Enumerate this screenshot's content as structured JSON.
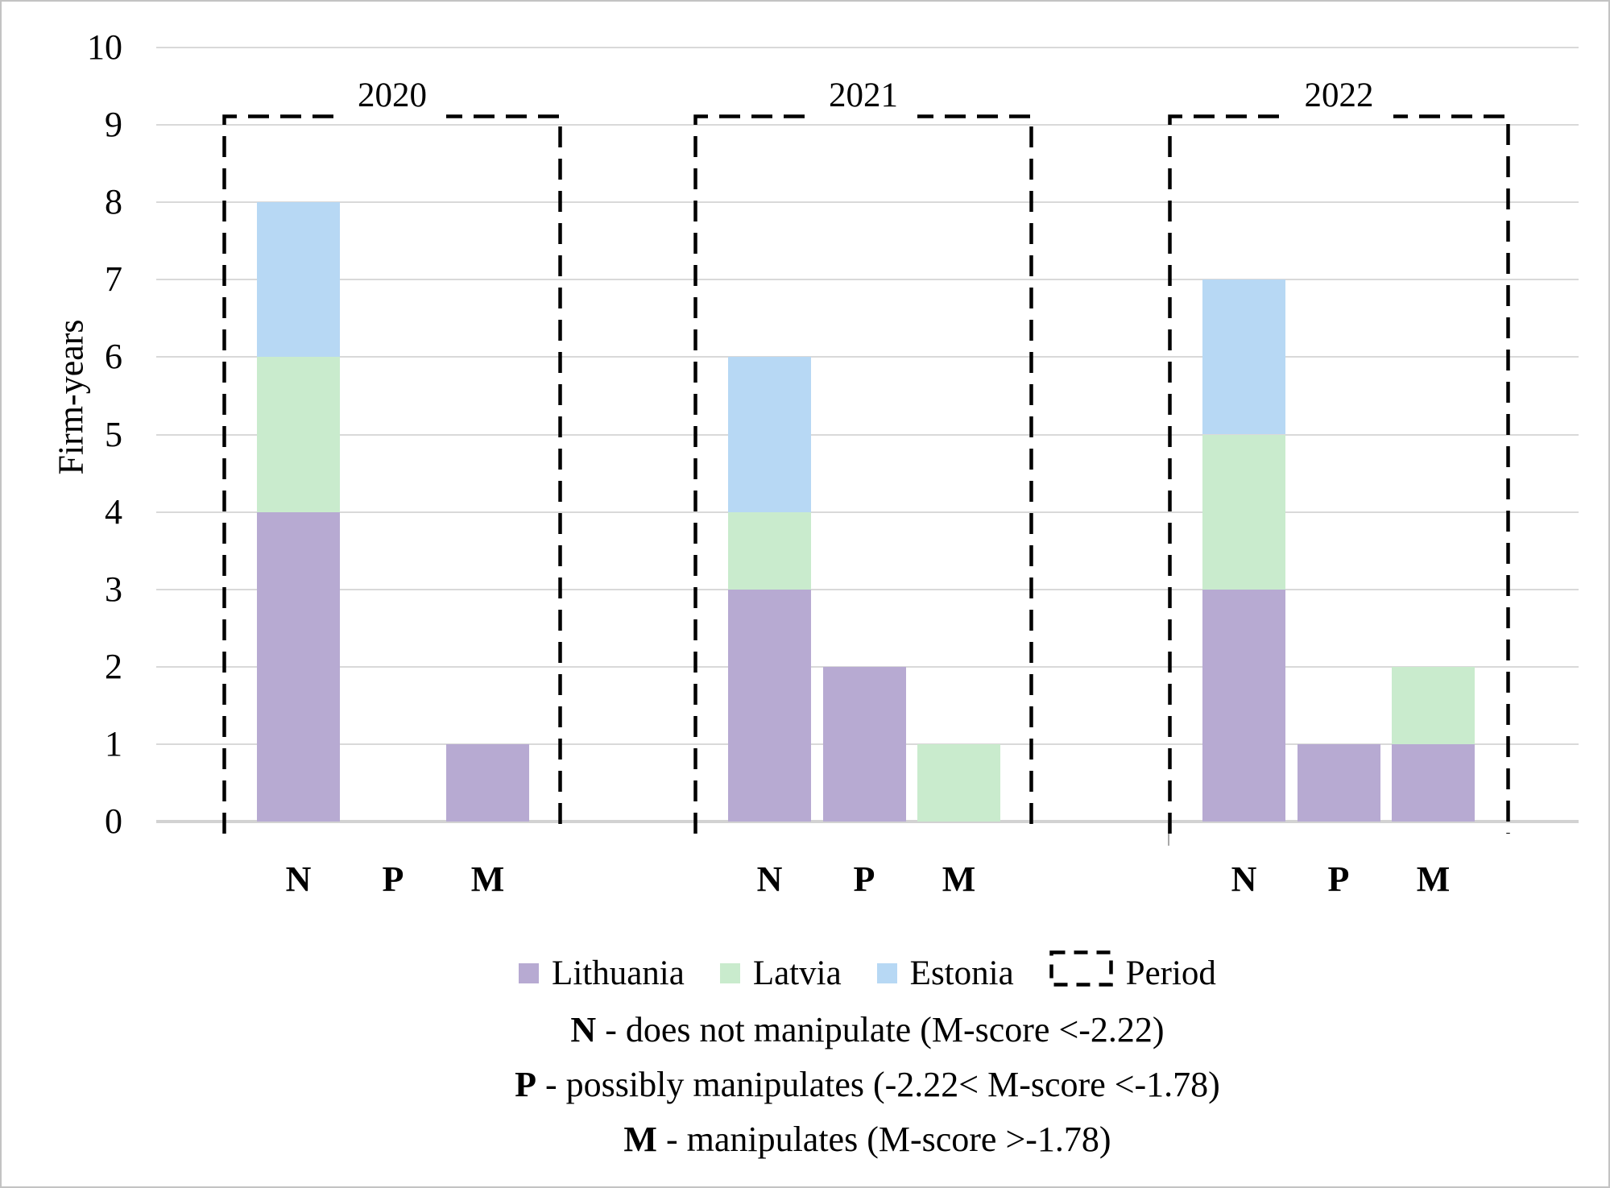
{
  "chart_data": {
    "type": "bar",
    "stacked": true,
    "title": "",
    "xlabel": "",
    "ylabel": "Firm-years",
    "ylim": [
      0,
      10
    ],
    "ytick_labels": [
      "0",
      "1",
      "2",
      "3",
      "4",
      "5",
      "6",
      "7",
      "8",
      "9",
      "10"
    ],
    "grid": true,
    "legend_position": "bottom",
    "categories": [
      "N",
      "P",
      "M"
    ],
    "groups": [
      {
        "period": "2020",
        "series": [
          {
            "name": "Lithuania",
            "values": [
              4,
              0,
              1
            ]
          },
          {
            "name": "Latvia",
            "values": [
              2,
              0,
              0
            ]
          },
          {
            "name": "Estonia",
            "values": [
              2,
              0,
              0
            ]
          }
        ],
        "totals": {
          "N": 8,
          "P": 0,
          "M": 1
        }
      },
      {
        "period": "2021",
        "series": [
          {
            "name": "Lithuania",
            "values": [
              3,
              2,
              0
            ]
          },
          {
            "name": "Latvia",
            "values": [
              1,
              0,
              1
            ]
          },
          {
            "name": "Estonia",
            "values": [
              2,
              0,
              0
            ]
          }
        ],
        "totals": {
          "N": 6,
          "P": 2,
          "M": 1
        }
      },
      {
        "period": "2022",
        "series": [
          {
            "name": "Lithuania",
            "values": [
              3,
              1,
              1
            ]
          },
          {
            "name": "Latvia",
            "values": [
              2,
              0,
              1
            ]
          },
          {
            "name": "Estonia",
            "values": [
              2,
              0,
              0
            ]
          }
        ],
        "totals": {
          "N": 7,
          "P": 1,
          "M": 2
        }
      }
    ],
    "series_colors": {
      "Lithuania": "#b7aad2",
      "Latvia": "#c9ebcd",
      "Estonia": "#b7d8f4"
    },
    "legend": [
      {
        "label": "Lithuania",
        "color": "#b7aad2",
        "marker": "square"
      },
      {
        "label": "Latvia",
        "color": "#c9ebcd",
        "marker": "square"
      },
      {
        "label": "Estonia",
        "color": "#b7d8f4",
        "marker": "square"
      },
      {
        "label": "Period",
        "color": "#000000",
        "marker": "dashed-box"
      }
    ],
    "notes": [
      {
        "key": "N",
        "text": " - does not manipulate (M-score <-2.22)"
      },
      {
        "key": "P",
        "text": " - possibly manipulates (-2.22< M-score <-1.78)"
      },
      {
        "key": "M",
        "text": " - manipulates (M-score >-1.78)"
      }
    ],
    "colors_misc": {
      "gridline": "#d9d9d9",
      "axis_line": "#d2d2d2",
      "period_box": "#000000",
      "frame_border": "#c3c3c3"
    }
  }
}
